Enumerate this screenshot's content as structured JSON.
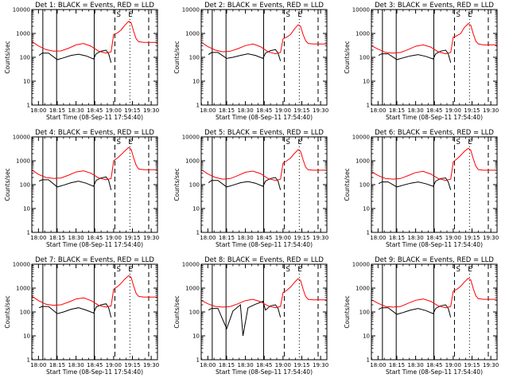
{
  "chart_data": {
    "type": "line",
    "shared": {
      "xlabel": "Start Time (08-Sep-11 17:54:40)",
      "ylabel": "Counts/sec",
      "x_tick_labels": [
        "18:00",
        "18:15",
        "18:30",
        "18:45",
        "19:00",
        "19:15",
        "19:30"
      ],
      "x_tick_minutes": [
        0,
        15,
        30,
        45,
        60,
        75,
        90
      ],
      "xlim_minutes": [
        -5.3,
        95
      ],
      "y_scale": "log",
      "ylim": [
        1,
        10000
      ],
      "y_tick_labels": [
        "1",
        "10",
        "100",
        "1000",
        "10000"
      ],
      "y_tick_values": [
        1,
        10,
        100,
        1000,
        10000
      ],
      "annotations": [
        "S",
        "E"
      ],
      "solid_marker_minutes": [
        3.5,
        14.5,
        44.5
      ],
      "dashed_marker_minutes": [
        61,
        88
      ],
      "dotted_marker_minutes": [
        73
      ],
      "series_colors": {
        "events": "#000000",
        "lld": "#ff0000"
      }
    },
    "panels": [
      {
        "title": "Det 1: BLACK = Events, RED = LLD",
        "events": {
          "x": [
            0.5,
            3,
            8,
            15,
            20,
            26,
            32,
            38,
            44,
            46,
            50,
            54,
            56,
            58
          ],
          "y": [
            120,
            150,
            150,
            80,
            95,
            120,
            135,
            115,
            85,
            140,
            180,
            200,
            140,
            60
          ]
        },
        "lld": {
          "x": [
            -5,
            0,
            6,
            12,
            18,
            24,
            30,
            36,
            42,
            48,
            54,
            58,
            60,
            63,
            66,
            69,
            72,
            74,
            76,
            78,
            80,
            84,
            90,
            95
          ],
          "y": [
            450,
            300,
            210,
            180,
            185,
            240,
            330,
            380,
            290,
            180,
            150,
            170,
            900,
            1050,
            1400,
            2200,
            3200,
            2800,
            1200,
            600,
            450,
            420,
            420,
            420
          ]
        }
      },
      {
        "title": "Det 2: BLACK = Events, RED = LLD",
        "events": {
          "x": [
            0.5,
            3,
            8,
            15,
            20,
            26,
            32,
            38,
            44,
            46,
            50,
            54,
            56,
            58
          ],
          "y": [
            130,
            160,
            160,
            90,
            100,
            120,
            140,
            120,
            90,
            150,
            190,
            210,
            150,
            70
          ]
        },
        "lld": {
          "x": [
            -5,
            0,
            6,
            12,
            18,
            24,
            30,
            36,
            42,
            48,
            54,
            58,
            60,
            63,
            66,
            69,
            72,
            74,
            76,
            78,
            80,
            84,
            90,
            95
          ],
          "y": [
            420,
            280,
            200,
            170,
            180,
            230,
            310,
            360,
            280,
            170,
            140,
            160,
            600,
            700,
            900,
            1500,
            2300,
            2000,
            900,
            500,
            380,
            360,
            360,
            360
          ]
        }
      },
      {
        "title": "Det 3: BLACK = Events, RED = LLD",
        "events": {
          "x": [
            0.5,
            3,
            8,
            15,
            20,
            26,
            32,
            38,
            44,
            46,
            50,
            54,
            56,
            58
          ],
          "y": [
            120,
            140,
            140,
            80,
            95,
            115,
            130,
            110,
            85,
            140,
            180,
            200,
            140,
            60
          ]
        },
        "lld": {
          "x": [
            -5,
            0,
            6,
            12,
            18,
            24,
            30,
            36,
            42,
            48,
            54,
            58,
            60,
            63,
            66,
            69,
            72,
            74,
            76,
            78,
            80,
            84,
            90,
            95
          ],
          "y": [
            300,
            220,
            160,
            150,
            160,
            210,
            290,
            330,
            270,
            170,
            140,
            160,
            700,
            800,
            1000,
            1800,
            2600,
            2200,
            950,
            480,
            360,
            330,
            330,
            330
          ]
        }
      },
      {
        "title": "Det 4: BLACK = Events, RED = LLD",
        "events": {
          "x": [
            0.5,
            3,
            8,
            15,
            20,
            26,
            32,
            38,
            44,
            46,
            50,
            54,
            56,
            58
          ],
          "y": [
            140,
            160,
            160,
            80,
            95,
            120,
            140,
            115,
            85,
            150,
            190,
            210,
            150,
            60
          ]
        },
        "lld": {
          "x": [
            -5,
            0,
            6,
            12,
            18,
            24,
            30,
            36,
            42,
            48,
            54,
            58,
            60,
            63,
            66,
            69,
            72,
            74,
            76,
            78,
            80,
            84,
            90,
            95
          ],
          "y": [
            400,
            270,
            200,
            180,
            190,
            250,
            340,
            380,
            300,
            190,
            160,
            180,
            1000,
            1300,
            1800,
            2600,
            3600,
            3000,
            1300,
            650,
            450,
            420,
            420,
            420
          ]
        }
      },
      {
        "title": "Det 5: BLACK = Events, RED = LLD",
        "events": {
          "x": [
            0.5,
            3,
            8,
            15,
            20,
            26,
            32,
            38,
            44,
            46,
            50,
            54,
            56,
            58
          ],
          "y": [
            120,
            150,
            150,
            80,
            95,
            120,
            135,
            115,
            85,
            140,
            180,
            200,
            140,
            60
          ]
        },
        "lld": {
          "x": [
            -5,
            0,
            6,
            12,
            18,
            24,
            30,
            36,
            42,
            48,
            54,
            58,
            60,
            63,
            66,
            69,
            72,
            74,
            76,
            78,
            80,
            84,
            90,
            95
          ],
          "y": [
            420,
            280,
            200,
            170,
            180,
            240,
            330,
            370,
            290,
            180,
            150,
            170,
            800,
            1000,
            1300,
            2000,
            2900,
            2500,
            1100,
            550,
            420,
            400,
            400,
            400
          ]
        }
      },
      {
        "title": "Det 6: BLACK = Events, RED = LLD",
        "events": {
          "x": [
            0.5,
            3,
            8,
            15,
            20,
            26,
            32,
            38,
            44,
            46,
            50,
            54,
            56,
            58
          ],
          "y": [
            110,
            130,
            130,
            80,
            95,
            115,
            130,
            110,
            85,
            140,
            180,
            190,
            130,
            60
          ]
        },
        "lld": {
          "x": [
            -5,
            0,
            6,
            12,
            18,
            24,
            30,
            36,
            42,
            48,
            54,
            58,
            60,
            63,
            66,
            69,
            72,
            74,
            76,
            78,
            80,
            84,
            90,
            95
          ],
          "y": [
            350,
            240,
            180,
            170,
            180,
            240,
            320,
            360,
            280,
            180,
            150,
            170,
            900,
            1200,
            1700,
            2500,
            3300,
            2800,
            1200,
            600,
            430,
            400,
            400,
            400
          ]
        }
      },
      {
        "title": "Det 7: BLACK = Events, RED = LLD",
        "events": {
          "x": [
            0.5,
            3,
            8,
            15,
            20,
            26,
            32,
            38,
            44,
            46,
            50,
            54,
            56,
            58
          ],
          "y": [
            150,
            170,
            170,
            85,
            100,
            130,
            150,
            120,
            90,
            160,
            200,
            220,
            150,
            60
          ]
        },
        "lld": {
          "x": [
            -5,
            0,
            6,
            12,
            18,
            24,
            30,
            36,
            42,
            48,
            54,
            58,
            60,
            63,
            66,
            69,
            72,
            74,
            76,
            78,
            80,
            84,
            90,
            95
          ],
          "y": [
            450,
            300,
            210,
            190,
            200,
            260,
            350,
            390,
            300,
            190,
            160,
            180,
            900,
            1150,
            1600,
            2400,
            3300,
            2800,
            1200,
            600,
            450,
            420,
            420,
            420
          ]
        }
      },
      {
        "title": "Det 8: BLACK = Events, RED = LLD",
        "events": {
          "x": [
            0.5,
            3,
            8,
            15,
            20,
            26,
            28,
            32,
            38,
            44,
            46,
            50,
            54,
            56,
            58
          ],
          "y": [
            120,
            140,
            140,
            20,
            110,
            200,
            10,
            150,
            210,
            280,
            120,
            180,
            200,
            140,
            60
          ]
        },
        "lld": {
          "x": [
            -5,
            0,
            6,
            12,
            18,
            24,
            30,
            36,
            42,
            48,
            54,
            58,
            60,
            63,
            66,
            69,
            72,
            74,
            76,
            78,
            80,
            84,
            90,
            95
          ],
          "y": [
            300,
            220,
            170,
            160,
            170,
            220,
            300,
            340,
            270,
            180,
            150,
            170,
            650,
            800,
            1100,
            1700,
            2500,
            2100,
            900,
            450,
            340,
            320,
            320,
            320
          ]
        }
      },
      {
        "title": "Det 9: BLACK = Events, RED = LLD",
        "events": {
          "x": [
            0.5,
            3,
            8,
            15,
            20,
            26,
            32,
            38,
            44,
            46,
            50,
            54,
            56,
            58
          ],
          "y": [
            130,
            150,
            150,
            80,
            95,
            120,
            140,
            115,
            85,
            140,
            180,
            200,
            140,
            60
          ]
        },
        "lld": {
          "x": [
            -5,
            0,
            6,
            12,
            18,
            24,
            30,
            36,
            42,
            48,
            54,
            58,
            60,
            63,
            66,
            69,
            72,
            74,
            76,
            78,
            80,
            84,
            90,
            95
          ],
          "y": [
            320,
            230,
            170,
            160,
            170,
            230,
            310,
            350,
            280,
            180,
            150,
            170,
            750,
            900,
            1200,
            1800,
            2600,
            2200,
            950,
            480,
            360,
            340,
            340,
            340
          ]
        }
      }
    ]
  }
}
